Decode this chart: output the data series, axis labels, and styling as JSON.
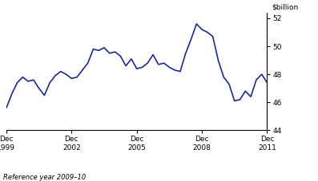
{
  "ylabel_right": "$billion",
  "footer": "Reference year 2009–10",
  "line_color": "#1B2A8C",
  "line_width": 1.2,
  "background_color": "#ffffff",
  "ylim": [
    44,
    52.4
  ],
  "yticks": [
    44,
    46,
    48,
    50,
    52
  ],
  "xtick_labels": [
    "Dec\n1999",
    "Dec\n2002",
    "Dec\n2005",
    "Dec\n2008",
    "Dec\n2011"
  ],
  "xtick_positions": [
    0,
    36,
    72,
    108,
    144
  ],
  "data_x": [
    0,
    3,
    6,
    9,
    12,
    15,
    18,
    21,
    24,
    27,
    30,
    33,
    36,
    39,
    42,
    45,
    48,
    51,
    54,
    57,
    60,
    63,
    66,
    69,
    72,
    75,
    78,
    81,
    84,
    87,
    90,
    93,
    96,
    99,
    102,
    105,
    108,
    111,
    114,
    117,
    120,
    123,
    126,
    129,
    132,
    135,
    138,
    141,
    144
  ],
  "data_y": [
    45.6,
    46.6,
    47.4,
    47.8,
    47.5,
    47.6,
    47.0,
    46.5,
    47.4,
    47.9,
    48.2,
    48.0,
    47.7,
    47.8,
    48.3,
    48.8,
    49.8,
    49.7,
    49.9,
    49.5,
    49.6,
    49.3,
    48.6,
    49.1,
    48.4,
    48.5,
    48.8,
    49.4,
    48.7,
    48.8,
    48.5,
    48.3,
    48.2,
    49.5,
    50.5,
    51.6,
    51.2,
    51.0,
    50.7,
    49.0,
    47.8,
    47.3,
    46.1,
    46.2,
    46.8,
    46.4,
    47.6,
    48.0,
    47.4
  ]
}
